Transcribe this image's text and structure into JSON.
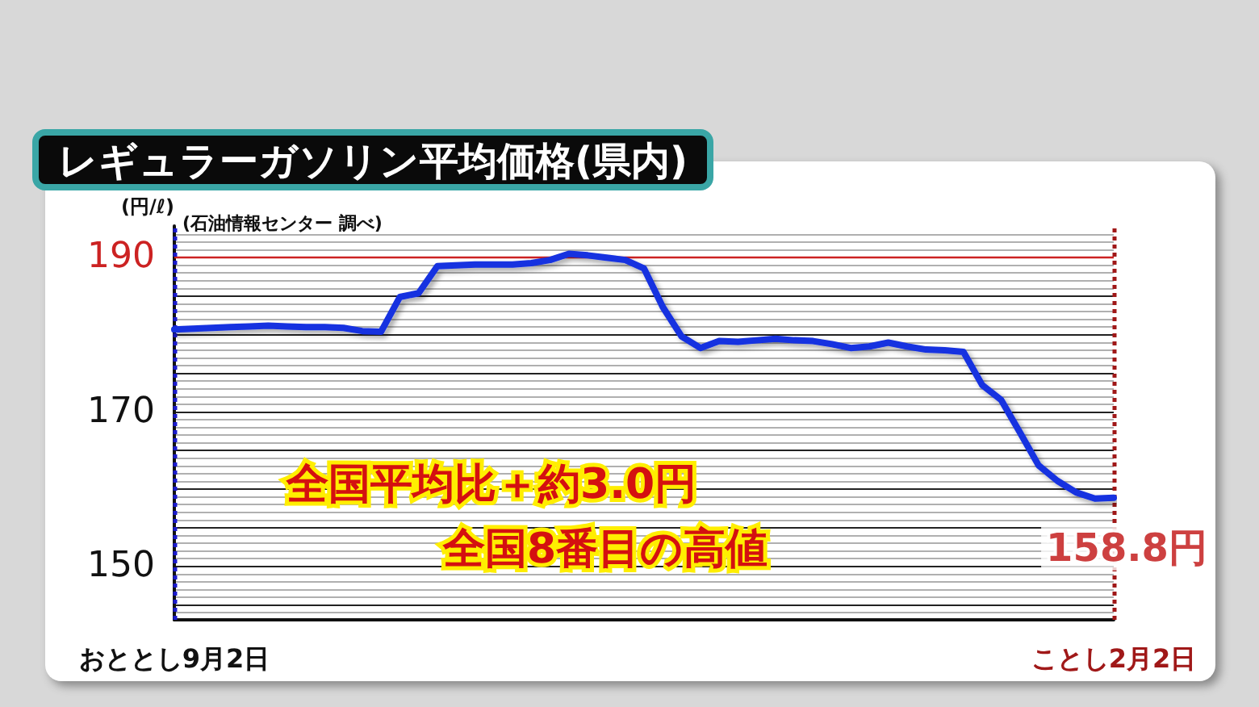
{
  "chart_data": {
    "type": "line",
    "title": "レギュラーガソリン平均価格(県内)",
    "ylabel": "(円/ℓ)",
    "annotations": [
      "(石油情報センター 調べ)",
      "全国平均比＋約3.0円",
      "全国8番目の高値",
      {
        "text": "158.8円",
        "x": "ことし2月2日",
        "y": 158.8
      }
    ],
    "categories": [
      "おととし9月2日",
      null,
      null,
      null,
      null,
      null,
      null,
      null,
      null,
      null,
      null,
      null,
      null,
      null,
      null,
      null,
      null,
      null,
      null,
      null,
      null,
      null,
      null,
      null,
      null,
      null,
      null,
      null,
      null,
      null,
      null,
      null,
      null,
      null,
      null,
      null,
      null,
      null,
      null,
      null,
      null,
      null,
      null,
      null,
      null,
      null,
      null,
      null,
      null,
      null,
      "ことし2月2日"
    ],
    "series": [
      {
        "color": "#1530e0",
        "values": [
          180.6,
          180.7,
          180.8,
          180.9,
          181.0,
          181.1,
          181.0,
          180.9,
          180.9,
          180.8,
          180.4,
          180.3,
          184.8,
          185.3,
          188.8,
          188.9,
          189.0,
          189.0,
          189.0,
          189.2,
          189.6,
          190.4,
          190.2,
          189.9,
          189.6,
          188.5,
          183.5,
          179.7,
          178.2,
          179.1,
          179.0,
          179.2,
          179.4,
          179.2,
          179.1,
          178.7,
          178.2,
          178.4,
          178.9,
          178.4,
          178.0,
          177.9,
          177.7,
          173.4,
          171.5,
          167.3,
          163.0,
          161.0,
          159.5,
          158.7,
          158.8
        ]
      }
    ],
    "ylim": [
      143,
      194
    ],
    "yticks": [
      {
        "value": 144,
        "label": null
      },
      {
        "value": 145,
        "label": null
      },
      {
        "value": 146,
        "label": null
      },
      {
        "value": 147,
        "label": null
      },
      {
        "value": 148,
        "label": null
      },
      {
        "value": 149,
        "label": null
      },
      150,
      {
        "value": 151,
        "label": null
      },
      {
        "value": 152,
        "label": null
      },
      {
        "value": 153,
        "label": null
      },
      {
        "value": 154,
        "label": null
      },
      {
        "value": 155,
        "label": null
      },
      {
        "value": 156,
        "label": null
      },
      {
        "value": 157,
        "label": null
      },
      {
        "value": 158,
        "label": null
      },
      {
        "value": 159,
        "label": null
      },
      {
        "value": 160,
        "label": null
      },
      {
        "value": 161,
        "label": null
      },
      {
        "value": 162,
        "label": null
      },
      {
        "value": 163,
        "label": null
      },
      {
        "value": 164,
        "label": null
      },
      {
        "value": 165,
        "label": null
      },
      {
        "value": 166,
        "label": null
      },
      {
        "value": 167,
        "label": null
      },
      {
        "value": 168,
        "label": null
      },
      {
        "value": 169,
        "label": null
      },
      170,
      {
        "value": 171,
        "label": null
      },
      {
        "value": 172,
        "label": null
      },
      {
        "value": 173,
        "label": null
      },
      {
        "value": 174,
        "label": null
      },
      {
        "value": 175,
        "label": null
      },
      {
        "value": 176,
        "label": null
      },
      {
        "value": 177,
        "label": null
      },
      {
        "value": 178,
        "label": null
      },
      {
        "value": 179,
        "label": null
      },
      {
        "value": 180,
        "label": null
      },
      {
        "value": 181,
        "label": null
      },
      {
        "value": 182,
        "label": null
      },
      {
        "value": 183,
        "label": null
      },
      {
        "value": 184,
        "label": null
      },
      {
        "value": 185,
        "label": null
      },
      {
        "value": 186,
        "label": null
      },
      {
        "value": 187,
        "label": null
      },
      {
        "value": 188,
        "label": null
      },
      {
        "value": 189,
        "label": null
      },
      190,
      {
        "value": 191,
        "label": null
      },
      {
        "value": 192,
        "label": null
      },
      {
        "value": 193,
        "label": null
      }
    ],
    "ref_lines": [
      {
        "axis": "y",
        "value": 190,
        "color": "#cc2222"
      },
      {
        "axis": "x",
        "value": "おととし9月2日",
        "color": "#1a1acc",
        "line_style": "dotted"
      },
      {
        "axis": "x",
        "value": "ことし2月2日",
        "color": "#a01818",
        "line_style": "dotted"
      }
    ],
    "grid": "y",
    "marker": "none",
    "line_style": "solid"
  }
}
